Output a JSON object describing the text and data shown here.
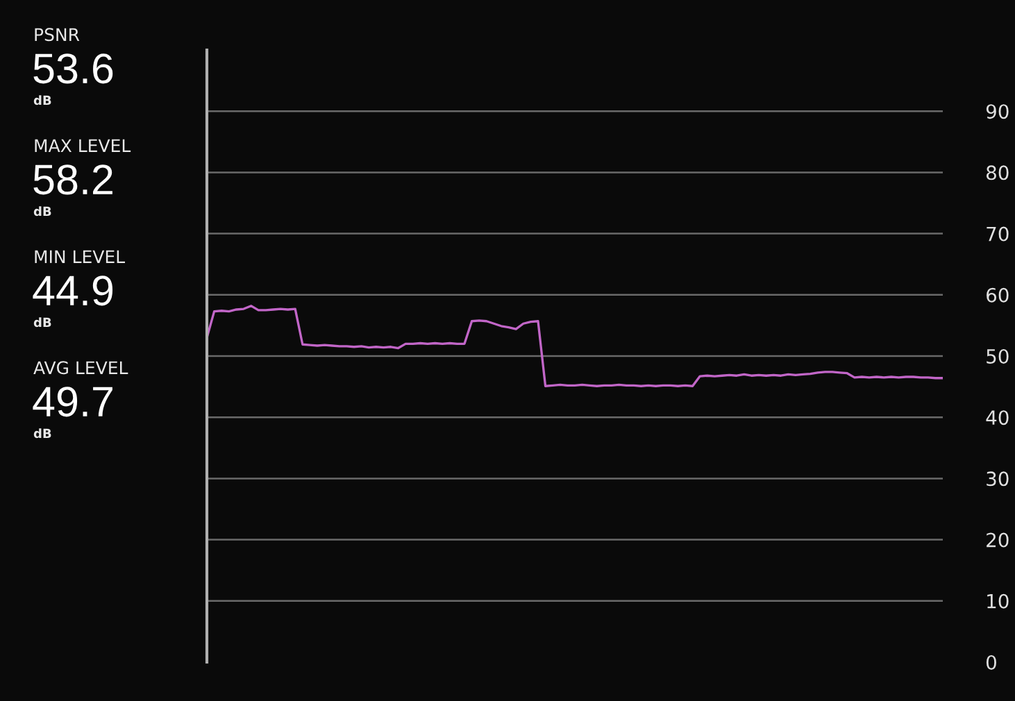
{
  "chart_data": {
    "type": "line",
    "annotations": [
      "PSNR",
      "53.6",
      "dB",
      "MAX LEVEL",
      "58.2",
      "dB",
      "MIN LEVEL",
      "44.9",
      "dB",
      "AVG LEVEL",
      "49.7",
      "dB"
    ],
    "categories": [
      null,
      null,
      null,
      null,
      null,
      null,
      null,
      null,
      null,
      null,
      null,
      null,
      null,
      null,
      null,
      null,
      null,
      null,
      null,
      null,
      null,
      null,
      null,
      null,
      null,
      null,
      null,
      null,
      null,
      null,
      null,
      null,
      null,
      null,
      null,
      null,
      null,
      null,
      null,
      null,
      null,
      null,
      null,
      null,
      null,
      null,
      null,
      null,
      null,
      null,
      null,
      null,
      null,
      null,
      null,
      null,
      null,
      null,
      null,
      null,
      null,
      null,
      null,
      null,
      null,
      null,
      null,
      null,
      null,
      null,
      null,
      null,
      null,
      null,
      null,
      null,
      null,
      null,
      null,
      null,
      null,
      null,
      null,
      null,
      null,
      null,
      null,
      null,
      null,
      null,
      null,
      null,
      null,
      null,
      null,
      null,
      null,
      null,
      null,
      null,
      null
    ],
    "series": [
      {
        "color": "#c266c8",
        "values": [
          53.0,
          57.3,
          57.4,
          57.3,
          57.6,
          57.7,
          58.2,
          57.5,
          57.5,
          57.6,
          57.7,
          57.6,
          57.7,
          51.9,
          51.8,
          51.7,
          51.8,
          51.7,
          51.6,
          51.6,
          51.5,
          51.6,
          51.4,
          51.5,
          51.4,
          51.5,
          51.3,
          52.0,
          52.0,
          52.1,
          52.0,
          52.1,
          52.0,
          52.1,
          52.0,
          52.0,
          55.7,
          55.8,
          55.7,
          55.3,
          54.9,
          54.7,
          54.4,
          55.3,
          55.6,
          55.7,
          45.1,
          45.2,
          45.3,
          45.2,
          45.2,
          45.3,
          45.2,
          45.1,
          45.2,
          45.2,
          45.3,
          45.2,
          45.2,
          45.1,
          45.2,
          45.1,
          45.2,
          45.2,
          45.1,
          45.2,
          45.1,
          46.7,
          46.8,
          46.7,
          46.8,
          46.9,
          46.8,
          47.0,
          46.8,
          46.9,
          46.8,
          46.9,
          46.8,
          47.0,
          46.9,
          47.0,
          47.1,
          47.3,
          47.4,
          47.4,
          47.3,
          47.2,
          46.5,
          46.6,
          46.5,
          46.6,
          46.5,
          46.6,
          46.5,
          46.6,
          46.6,
          46.5,
          46.5,
          46.4,
          46.4
        ]
      }
    ],
    "ylim": [
      0,
      100
    ],
    "yticks": [
      0,
      10,
      20,
      30,
      40,
      50,
      60,
      70,
      80,
      90
    ],
    "grid": "y",
    "tick_labels": "y",
    "legend": false,
    "marker": "none",
    "line_style": "solid"
  }
}
